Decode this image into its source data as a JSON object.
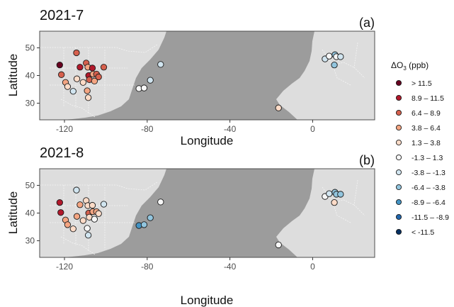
{
  "figure": {
    "xlabel": "Longitude",
    "ylabel": "Latitude",
    "x_ticks": [
      -120,
      -80,
      -40,
      0
    ],
    "y_ticks": [
      30,
      40,
      50
    ],
    "xlim": [
      -132,
      30
    ],
    "ylim": [
      24,
      56
    ]
  },
  "panels": [
    {
      "title": "2021-7",
      "tag": "(a)",
      "points": [
        {
          "lon": -122.3,
          "lat": 43.8,
          "bin": 0
        },
        {
          "lon": -114.2,
          "lat": 48.2,
          "bin": 2
        },
        {
          "lon": -121.5,
          "lat": 40.3,
          "bin": 2
        },
        {
          "lon": -112.5,
          "lat": 43.0,
          "bin": 1
        },
        {
          "lon": -109.5,
          "lat": 44.5,
          "bin": 2
        },
        {
          "lon": -108.7,
          "lat": 43.0,
          "bin": 3
        },
        {
          "lon": -106.5,
          "lat": 42.7,
          "bin": 1
        },
        {
          "lon": -108.3,
          "lat": 40.0,
          "bin": 1
        },
        {
          "lon": -106.2,
          "lat": 40.5,
          "bin": 3
        },
        {
          "lon": -104.5,
          "lat": 40.5,
          "bin": 2
        },
        {
          "lon": -103.5,
          "lat": 39.5,
          "bin": 2
        },
        {
          "lon": -101.0,
          "lat": 43.0,
          "bin": 2
        },
        {
          "lon": -108.0,
          "lat": 38.5,
          "bin": 2
        },
        {
          "lon": -105.5,
          "lat": 38.0,
          "bin": 3
        },
        {
          "lon": -114.0,
          "lat": 38.8,
          "bin": 4
        },
        {
          "lon": -111.0,
          "lat": 37.5,
          "bin": 4
        },
        {
          "lon": -119.5,
          "lat": 37.5,
          "bin": 3
        },
        {
          "lon": -118.5,
          "lat": 36.0,
          "bin": 4
        },
        {
          "lon": -115.8,
          "lat": 34.3,
          "bin": 6
        },
        {
          "lon": -109.0,
          "lat": 34.5,
          "bin": 3
        },
        {
          "lon": -108.5,
          "lat": 32.0,
          "bin": 4
        },
        {
          "lon": -84.0,
          "lat": 35.3,
          "bin": 5
        },
        {
          "lon": -81.5,
          "lat": 35.5,
          "bin": 5
        },
        {
          "lon": -78.5,
          "lat": 38.3,
          "bin": 6
        },
        {
          "lon": -73.5,
          "lat": 44.0,
          "bin": 6
        },
        {
          "lon": -16.5,
          "lat": 28.3,
          "bin": 4
        },
        {
          "lon": 6.0,
          "lat": 46.0,
          "bin": 6
        },
        {
          "lon": 8.0,
          "lat": 47.0,
          "bin": 5
        },
        {
          "lon": 10.8,
          "lat": 47.5,
          "bin": 7
        },
        {
          "lon": 11.5,
          "lat": 46.8,
          "bin": 5
        },
        {
          "lon": 13.5,
          "lat": 46.8,
          "bin": 6
        },
        {
          "lon": 10.5,
          "lat": 43.8,
          "bin": 7
        }
      ]
    },
    {
      "title": "2021-8",
      "tag": "(b)",
      "points": [
        {
          "lon": -122.3,
          "lat": 43.8,
          "bin": 1
        },
        {
          "lon": -121.8,
          "lat": 40.2,
          "bin": 1
        },
        {
          "lon": -114.2,
          "lat": 48.3,
          "bin": 6
        },
        {
          "lon": -112.5,
          "lat": 43.0,
          "bin": 3
        },
        {
          "lon": -109.5,
          "lat": 44.5,
          "bin": 4
        },
        {
          "lon": -108.7,
          "lat": 42.7,
          "bin": 4
        },
        {
          "lon": -106.5,
          "lat": 42.8,
          "bin": 4
        },
        {
          "lon": -108.3,
          "lat": 40.0,
          "bin": 2
        },
        {
          "lon": -106.3,
          "lat": 40.5,
          "bin": 3
        },
        {
          "lon": -104.5,
          "lat": 40.5,
          "bin": 3
        },
        {
          "lon": -103.5,
          "lat": 39.8,
          "bin": 4
        },
        {
          "lon": -101.0,
          "lat": 43.2,
          "bin": 6
        },
        {
          "lon": -108.0,
          "lat": 38.5,
          "bin": 4
        },
        {
          "lon": -105.5,
          "lat": 37.8,
          "bin": 5
        },
        {
          "lon": -114.0,
          "lat": 38.8,
          "bin": 3
        },
        {
          "lon": -111.0,
          "lat": 37.3,
          "bin": 4
        },
        {
          "lon": -119.5,
          "lat": 37.5,
          "bin": 3
        },
        {
          "lon": -118.5,
          "lat": 35.8,
          "bin": 3
        },
        {
          "lon": -115.8,
          "lat": 34.3,
          "bin": 4
        },
        {
          "lon": -109.0,
          "lat": 34.5,
          "bin": 5
        },
        {
          "lon": -108.5,
          "lat": 32.0,
          "bin": 6
        },
        {
          "lon": -84.0,
          "lat": 35.5,
          "bin": 8
        },
        {
          "lon": -81.5,
          "lat": 35.8,
          "bin": 7
        },
        {
          "lon": -78.5,
          "lat": 38.3,
          "bin": 7
        },
        {
          "lon": -73.5,
          "lat": 44.0,
          "bin": 5
        },
        {
          "lon": -16.5,
          "lat": 28.5,
          "bin": 5
        },
        {
          "lon": 6.0,
          "lat": 46.0,
          "bin": 5
        },
        {
          "lon": 8.0,
          "lat": 47.0,
          "bin": 6
        },
        {
          "lon": 10.8,
          "lat": 47.5,
          "bin": 7
        },
        {
          "lon": 11.5,
          "lat": 46.8,
          "bin": 7
        },
        {
          "lon": 13.5,
          "lat": 46.8,
          "bin": 7
        },
        {
          "lon": 10.5,
          "lat": 43.8,
          "bin": 4
        }
      ]
    }
  ],
  "legend": {
    "title_prefix": "ΔO",
    "title_sub": "3",
    "title_suffix": " (ppb)",
    "items": [
      {
        "label": "> 11.5",
        "color": "#67001f"
      },
      {
        "label": "8.9 – 11.5",
        "color": "#b2182b"
      },
      {
        "label": "6.4 – 8.9",
        "color": "#d6604d"
      },
      {
        "label": "3.8 – 6.4",
        "color": "#f4a582"
      },
      {
        "label": "1.3 – 3.8",
        "color": "#fddbc7"
      },
      {
        "label": "-1.3 – 1.3",
        "color": "#f7f7f7"
      },
      {
        "label": "-3.8 – -1.3",
        "color": "#d1e5f0"
      },
      {
        "label": "-6.4 – -3.8",
        "color": "#92c5de"
      },
      {
        "label": "-8.9 – -6.4",
        "color": "#4393c3"
      },
      {
        "label": "-11.5 – -8.9",
        "color": "#2166ac"
      },
      {
        "label": "< -11.5",
        "color": "#053061"
      }
    ]
  },
  "colors": {
    "ocean": "#9c9c9c",
    "land": "#dddddd",
    "border": "#f4f4f4"
  }
}
